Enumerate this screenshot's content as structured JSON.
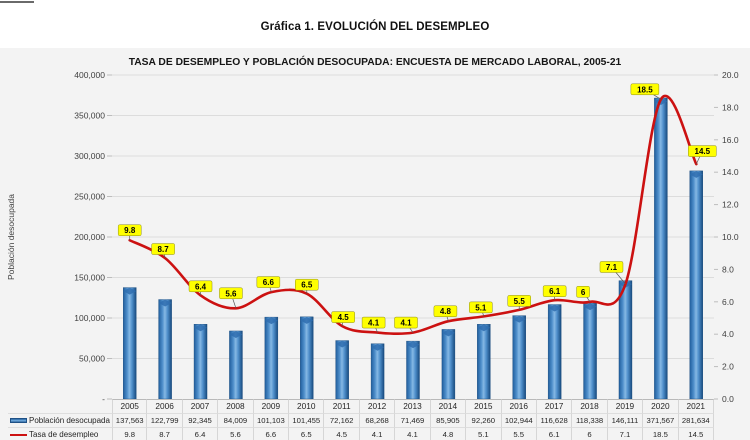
{
  "figure_title": "Gráfica 1. EVOLUCIÓN DEL DESEMPLEO",
  "chart_data": {
    "type": "combo-bar-line",
    "title": "TASA DE DESEMPLEO Y POBLACIÓN DESOCUPADA:  ENCUESTA DE MERCADO LABORAL, 2005-21",
    "categories": [
      "2005",
      "2006",
      "2007",
      "2008",
      "2009",
      "2010",
      "2011",
      "2012",
      "2013",
      "2014",
      "2015",
      "2016",
      "2017",
      "2018",
      "2019",
      "2020",
      "2021"
    ],
    "series": [
      {
        "name": "Población desocupada",
        "type": "bar",
        "axis": "left",
        "color": "#3c7dc0",
        "values": [
          137563,
          122799,
          92345,
          84009,
          101103,
          101455,
          72162,
          68268,
          71469,
          85905,
          92260,
          102944,
          116628,
          118338,
          146111,
          371567,
          281634
        ],
        "value_labels": [
          "137,563",
          "122,799",
          "92,345",
          "84,009",
          "101,103",
          "101,455",
          "72,162",
          "68,268",
          "71,469",
          "85,905",
          "92,260",
          "102,944",
          "116,628",
          "118,338",
          "146,111",
          "371,567",
          "281,634"
        ]
      },
      {
        "name": "Tasa de desempleo",
        "type": "line",
        "axis": "right",
        "color": "#cc1111",
        "values": [
          9.8,
          8.7,
          6.4,
          5.6,
          6.6,
          6.5,
          4.5,
          4.1,
          4.1,
          4.8,
          5.1,
          5.5,
          6.1,
          6,
          7.1,
          18.5,
          14.5
        ],
        "value_labels": [
          "9.8",
          "8.7",
          "6.4",
          "5.6",
          "6.6",
          "6.5",
          "4.5",
          "4.1",
          "4.1",
          "4.8",
          "5.1",
          "5.5",
          "6.1",
          "6",
          "7.1",
          "18.5",
          "14.5"
        ],
        "point_label_bg": "#ffff00"
      }
    ],
    "left_axis": {
      "title": "Población desocupada",
      "min": 0,
      "max": 400000,
      "step": 50000,
      "tick_labels": [
        "-",
        "50,000",
        "100,000",
        "150,000",
        "200,000",
        "250,000",
        "300,000",
        "350,000",
        "400,000"
      ]
    },
    "right_axis": {
      "min": 0,
      "max": 20,
      "step": 2,
      "tick_labels": [
        "0.0",
        "2.0",
        "4.0",
        "6.0",
        "8.0",
        "10.0",
        "12.0",
        "14.0",
        "16.0",
        "18.0",
        "20.0"
      ]
    },
    "grid": "horizontal",
    "legend_position": "bottom-data-table"
  }
}
